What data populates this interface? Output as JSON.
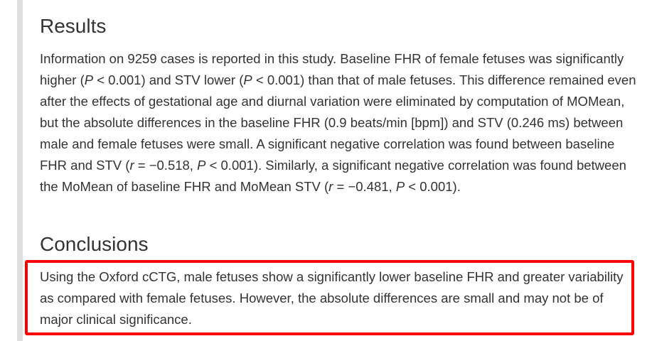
{
  "results": {
    "heading": "Results",
    "paragraph": {
      "t1": "Information on 9259 cases is reported in this study. Baseline FHR of female fetuses was significantly higher (",
      "p1": "P",
      "t2": " < 0.001) and STV lower (",
      "p2": "P",
      "t3": " < 0.001) than that of male fetuses. This difference remained even after the effects of gestational age and diurnal variation were eliminated by computation of MOMean, but the absolute differences in the baseline FHR (0.9 beats/min [bpm]) and STV (0.246 ms) between male and female fetuses were small. A significant negative correlation was found between baseline FHR and STV (",
      "r1": "r",
      "t4": " = −0.518, ",
      "p3": "P",
      "t5": " < 0.001). Similarly, a significant negative correlation was found between the MoMean of baseline FHR and MoMean STV (",
      "r2": "r",
      "t6": " = −0.481, ",
      "p4": "P",
      "t7": " < 0.001)."
    }
  },
  "conclusions": {
    "heading": "Conclusions",
    "paragraph": "Using the Oxford cCTG, male fetuses show a significantly lower baseline FHR and greater variability as compared with female fetuses. However, the absolute differences are small and may not be of major clinical significance."
  },
  "colors": {
    "highlight_border": "#ff0000",
    "left_rule": "#dedede",
    "text": "#333333"
  }
}
